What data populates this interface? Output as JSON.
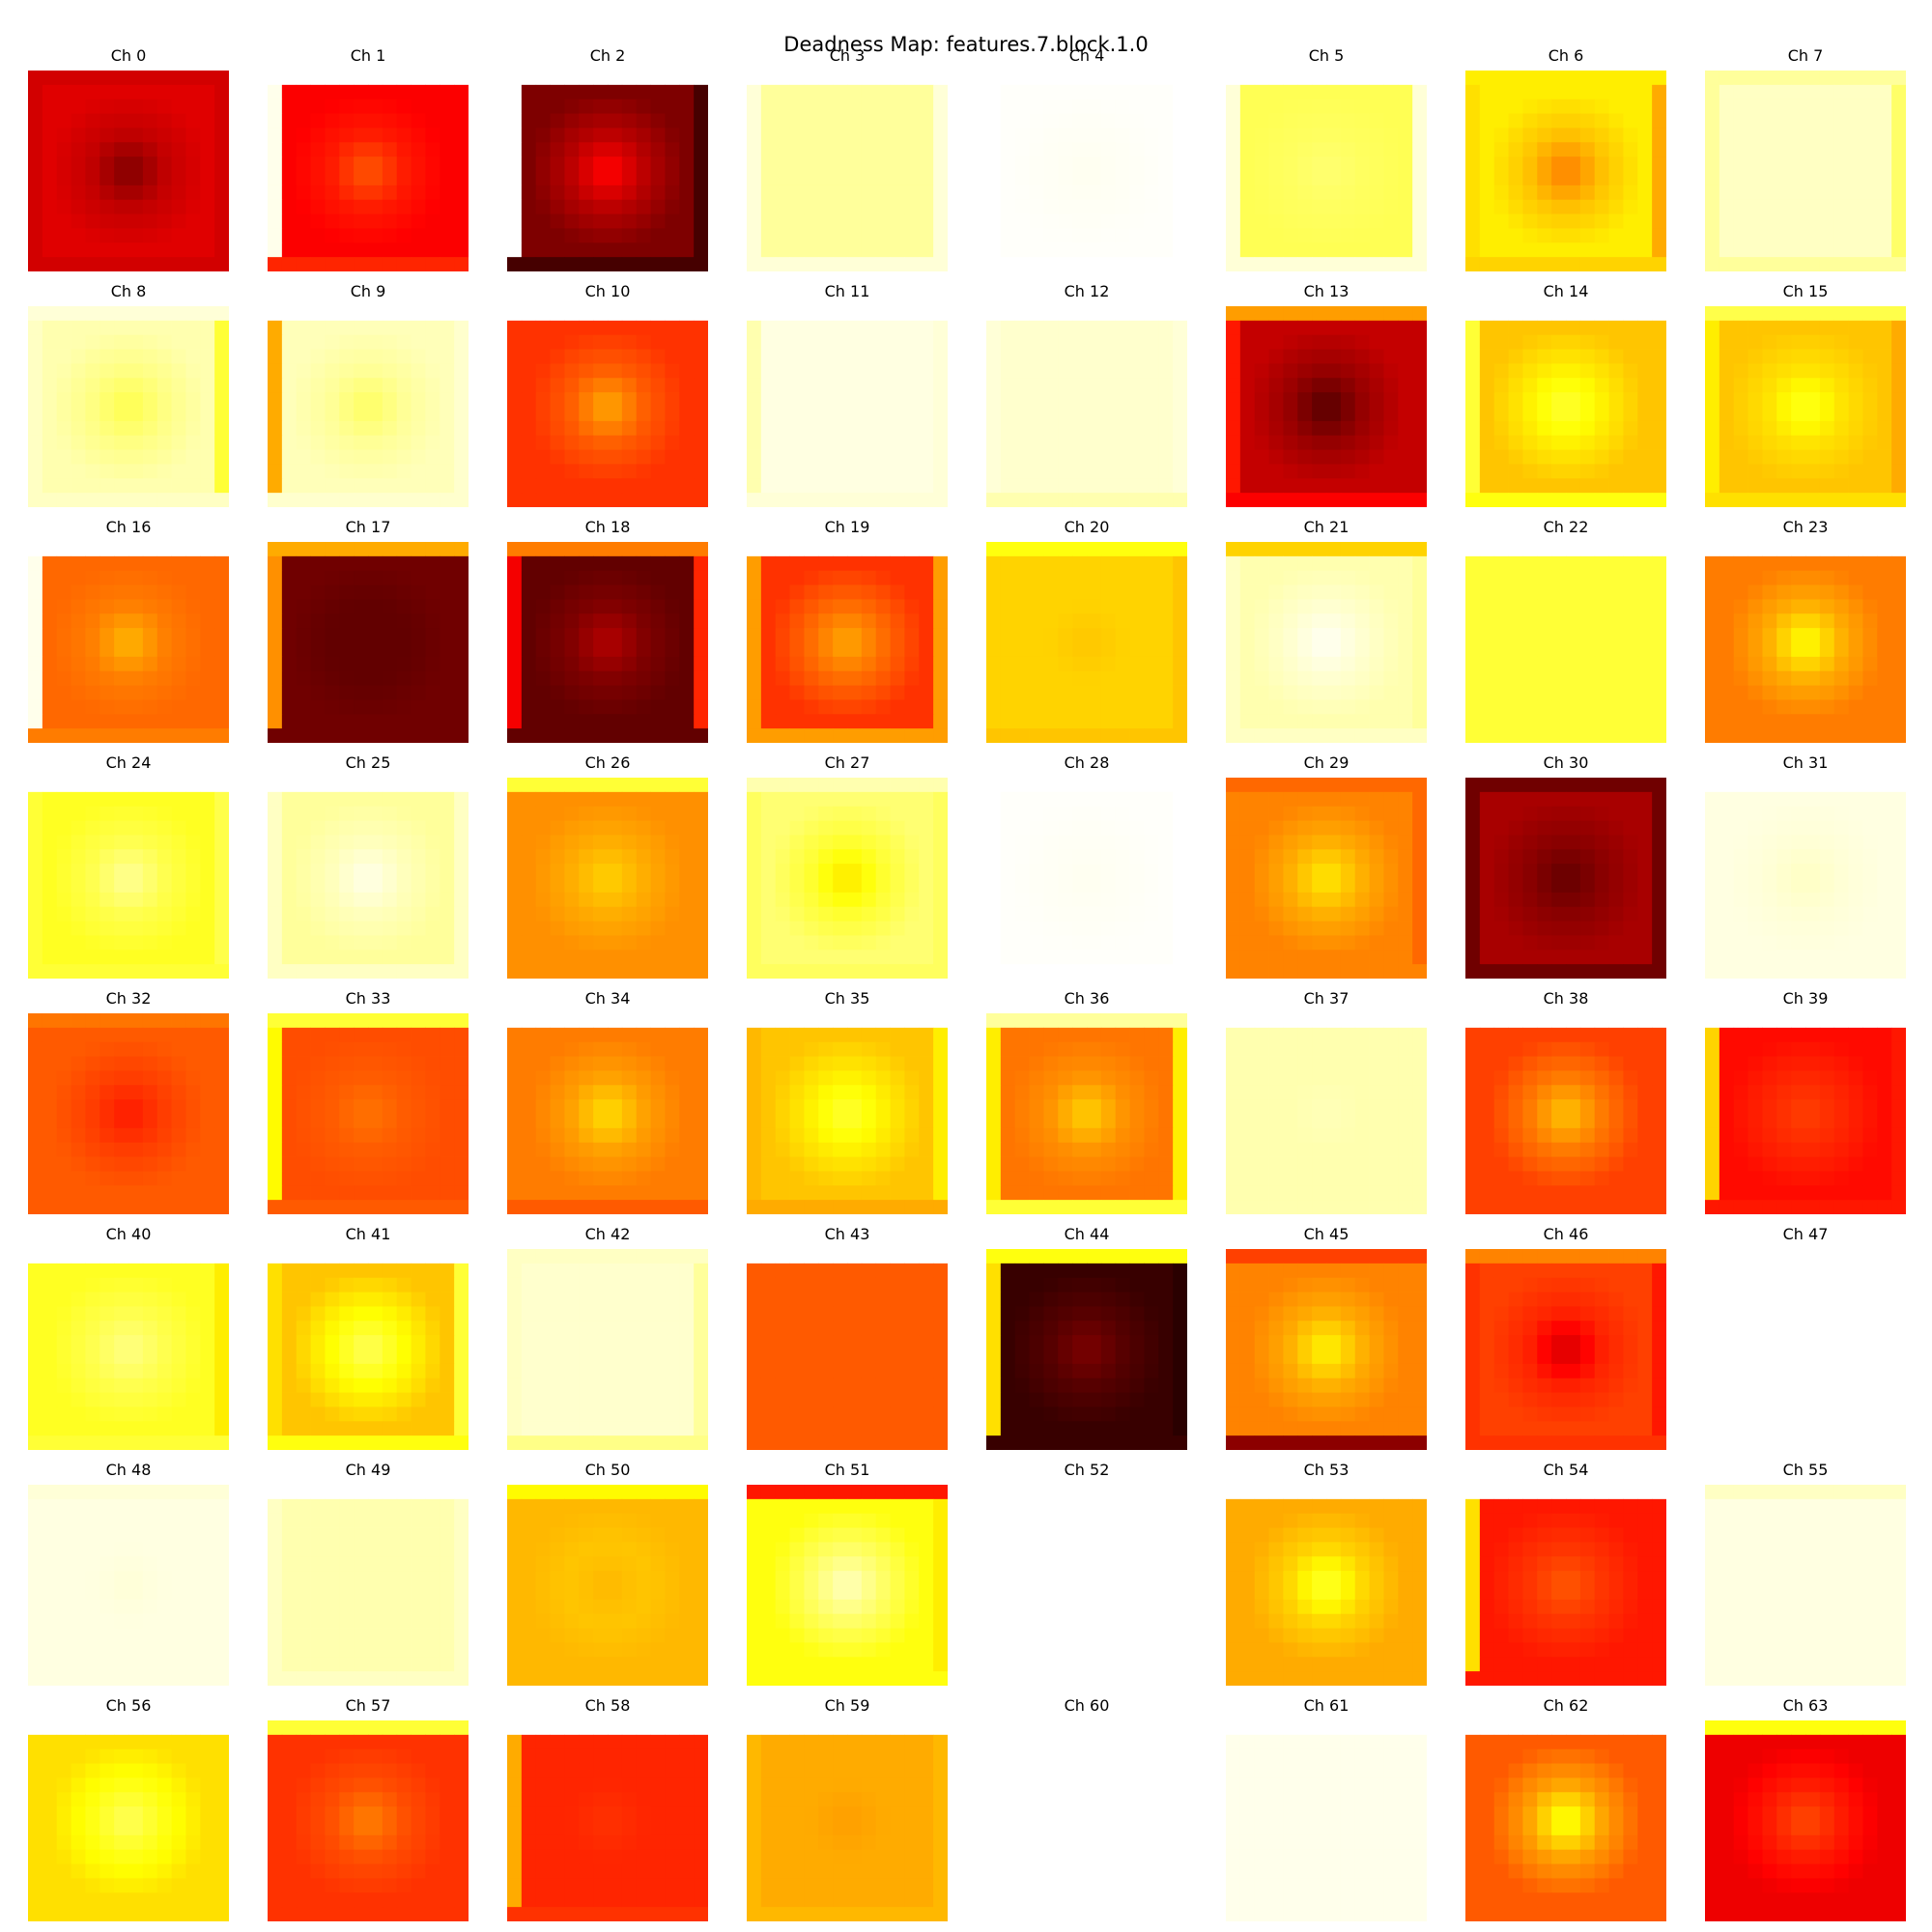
{
  "title": "Deadness Map: features.7.block.1.0",
  "colormap": "hot",
  "chart_data": {
    "type": "heatmap",
    "title": "Deadness Map: features.7.block.1.0",
    "grid": {
      "rows": 8,
      "cols": 8
    },
    "heatmap_grid_size": 14,
    "channels": [
      {
        "label": "Ch 0",
        "center": 0.18,
        "mid": 0.28,
        "edge": 0.32,
        "border": [
          0.3,
          0.3,
          0.3,
          0.3
        ],
        "blank": false
      },
      {
        "label": "Ch 1",
        "center": 0.5,
        "mid": 0.4,
        "edge": 0.36,
        "border": [
          1.0,
          0.42,
          0.36,
          0.98
        ],
        "blank": false
      },
      {
        "label": "Ch 2",
        "center": 0.38,
        "mid": 0.26,
        "edge": 0.18,
        "border": [
          1.0,
          0.1,
          0.1,
          1.0
        ],
        "blank": false
      },
      {
        "label": "Ch 3",
        "center": 0.9,
        "mid": 0.9,
        "edge": 0.9,
        "border": [
          1.0,
          0.96,
          0.96,
          0.96
        ],
        "blank": false
      },
      {
        "label": "Ch 4",
        "center": 0.985,
        "mid": 0.99,
        "edge": 0.995,
        "border": [
          1.0,
          1.0,
          1.0,
          1.0
        ],
        "blank": false
      },
      {
        "label": "Ch 5",
        "center": 0.86,
        "mid": 0.84,
        "edge": 0.83,
        "border": [
          1.0,
          0.96,
          0.96,
          0.96
        ],
        "blank": false
      },
      {
        "label": "Ch 6",
        "center": 0.55,
        "mid": 0.66,
        "edge": 0.72,
        "border": [
          0.72,
          0.68,
          0.62,
          0.7
        ],
        "blank": false
      },
      {
        "label": "Ch 7",
        "center": 0.94,
        "mid": 0.94,
        "edge": 0.94,
        "border": [
          0.9,
          0.9,
          0.85,
          0.9
        ],
        "blank": false
      },
      {
        "label": "Ch 8",
        "center": 0.82,
        "mid": 0.88,
        "edge": 0.92,
        "border": [
          0.96,
          0.94,
          0.8,
          0.94
        ],
        "blank": false
      },
      {
        "label": "Ch 9",
        "center": 0.84,
        "mid": 0.9,
        "edge": 0.93,
        "border": [
          1.0,
          0.95,
          0.95,
          0.62
        ],
        "blank": false
      },
      {
        "label": "Ch 10",
        "center": 0.62,
        "mid": 0.5,
        "edge": 0.44,
        "border": [
          1.0,
          0.44,
          0.44,
          0.44
        ],
        "blank": false
      },
      {
        "label": "Ch 11",
        "center": 0.97,
        "mid": 0.97,
        "edge": 0.97,
        "border": [
          1.0,
          0.96,
          0.96,
          0.92
        ],
        "blank": false
      },
      {
        "label": "Ch 12",
        "center": 0.95,
        "mid": 0.95,
        "edge": 0.95,
        "border": [
          1.0,
          0.92,
          0.96,
          0.96
        ],
        "blank": false
      },
      {
        "label": "Ch 13",
        "center": 0.12,
        "mid": 0.22,
        "edge": 0.28,
        "border": [
          0.6,
          0.36,
          0.28,
          0.4
        ],
        "blank": false
      },
      {
        "label": "Ch 14",
        "center": 0.8,
        "mid": 0.72,
        "edge": 0.66,
        "border": [
          1.0,
          0.76,
          0.66,
          0.8
        ],
        "blank": false
      },
      {
        "label": "Ch 15",
        "center": 0.78,
        "mid": 0.7,
        "edge": 0.66,
        "border": [
          0.82,
          0.7,
          0.62,
          0.72
        ],
        "blank": false
      },
      {
        "label": "Ch 16",
        "center": 0.64,
        "mid": 0.55,
        "edge": 0.52,
        "border": [
          1.0,
          0.55,
          0.52,
          0.98
        ],
        "blank": false
      },
      {
        "label": "Ch 17",
        "center": 0.14,
        "mid": 0.14,
        "edge": 0.16,
        "border": [
          0.62,
          0.16,
          0.16,
          0.58
        ],
        "blank": false
      },
      {
        "label": "Ch 18",
        "center": 0.26,
        "mid": 0.18,
        "edge": 0.14,
        "border": [
          0.55,
          0.14,
          0.42,
          0.35
        ],
        "blank": false
      },
      {
        "label": "Ch 19",
        "center": 0.62,
        "mid": 0.52,
        "edge": 0.44,
        "border": [
          1.0,
          0.6,
          0.6,
          0.6
        ],
        "blank": false
      },
      {
        "label": "Ch 20",
        "center": 0.66,
        "mid": 0.68,
        "edge": 0.68,
        "border": [
          0.76,
          0.66,
          0.66,
          0.68
        ],
        "blank": false
      },
      {
        "label": "Ch 21",
        "center": 0.99,
        "mid": 0.95,
        "edge": 0.92,
        "border": [
          0.68,
          0.94,
          0.9,
          0.94
        ],
        "blank": false
      },
      {
        "label": "Ch 22",
        "center": 0.8,
        "mid": 0.8,
        "edge": 0.8,
        "border": [
          1.0,
          0.8,
          0.8,
          0.8
        ],
        "blank": false
      },
      {
        "label": "Ch 23",
        "center": 0.76,
        "mid": 0.62,
        "edge": 0.55,
        "border": [
          1.0,
          0.55,
          0.55,
          0.55
        ],
        "blank": false
      },
      {
        "label": "Ch 24",
        "center": 0.9,
        "mid": 0.82,
        "edge": 0.78,
        "border": [
          1.0,
          0.8,
          0.82,
          0.8
        ],
        "blank": false
      },
      {
        "label": "Ch 25",
        "center": 0.98,
        "mid": 0.93,
        "edge": 0.9,
        "border": [
          1.0,
          0.94,
          0.94,
          0.94
        ],
        "blank": false
      },
      {
        "label": "Ch 26",
        "center": 0.68,
        "mid": 0.62,
        "edge": 0.58,
        "border": [
          0.8,
          0.58,
          0.58,
          0.58
        ],
        "blank": false
      },
      {
        "label": "Ch 27",
        "center": 0.7,
        "mid": 0.8,
        "edge": 0.86,
        "border": [
          0.92,
          0.84,
          0.84,
          0.84
        ],
        "blank": false
      },
      {
        "label": "Ch 28",
        "center": 0.985,
        "mid": 0.99,
        "edge": 0.995,
        "border": [
          1.0,
          1.0,
          1.0,
          1.0
        ],
        "blank": false
      },
      {
        "label": "Ch 29",
        "center": 0.72,
        "mid": 0.62,
        "edge": 0.56,
        "border": [
          0.52,
          0.56,
          0.52,
          0.56
        ],
        "blank": false
      },
      {
        "label": "Ch 30",
        "center": 0.14,
        "mid": 0.2,
        "edge": 0.24,
        "border": [
          0.16,
          0.16,
          0.16,
          0.16
        ],
        "blank": false
      },
      {
        "label": "Ch 31",
        "center": 0.94,
        "mid": 0.96,
        "edge": 0.97,
        "border": [
          1.0,
          0.97,
          0.97,
          0.97
        ],
        "blank": false
      },
      {
        "label": "Ch 32",
        "center": 0.4,
        "mid": 0.46,
        "edge": 0.5,
        "border": [
          0.54,
          0.5,
          0.5,
          0.5
        ],
        "blank": false
      },
      {
        "label": "Ch 33",
        "center": 0.54,
        "mid": 0.5,
        "edge": 0.48,
        "border": [
          0.8,
          0.5,
          0.48,
          0.74
        ],
        "blank": false
      },
      {
        "label": "Ch 34",
        "center": 0.7,
        "mid": 0.6,
        "edge": 0.55,
        "border": [
          1.0,
          0.5,
          0.55,
          0.55
        ],
        "blank": false
      },
      {
        "label": "Ch 35",
        "center": 0.8,
        "mid": 0.72,
        "edge": 0.66,
        "border": [
          1.0,
          0.62,
          0.72,
          0.64
        ],
        "blank": false
      },
      {
        "label": "Ch 36",
        "center": 0.68,
        "mid": 0.58,
        "edge": 0.54,
        "border": [
          0.9,
          0.8,
          0.72,
          0.72
        ],
        "blank": false
      },
      {
        "label": "Ch 37",
        "center": 0.93,
        "mid": 0.92,
        "edge": 0.92,
        "border": [
          1.0,
          0.92,
          0.92,
          0.92
        ],
        "blank": false
      },
      {
        "label": "Ch 38",
        "center": 0.66,
        "mid": 0.54,
        "edge": 0.46,
        "border": [
          1.0,
          0.46,
          0.46,
          0.46
        ],
        "blank": false
      },
      {
        "label": "Ch 39",
        "center": 0.46,
        "mid": 0.42,
        "edge": 0.38,
        "border": [
          1.0,
          0.4,
          0.4,
          0.68
        ],
        "blank": false
      },
      {
        "label": "Ch 40",
        "center": 0.88,
        "mid": 0.82,
        "edge": 0.78,
        "border": [
          1.0,
          0.8,
          0.72,
          0.78
        ],
        "blank": false
      },
      {
        "label": "Ch 41",
        "center": 0.84,
        "mid": 0.74,
        "edge": 0.66,
        "border": [
          1.0,
          0.76,
          0.8,
          0.7
        ],
        "blank": false
      },
      {
        "label": "Ch 42",
        "center": 0.95,
        "mid": 0.95,
        "edge": 0.95,
        "border": [
          0.94,
          0.88,
          0.9,
          0.94
        ],
        "blank": false
      },
      {
        "label": "Ch 43",
        "center": 0.5,
        "mid": 0.5,
        "edge": 0.5,
        "border": [
          1.0,
          0.5,
          0.5,
          0.5
        ],
        "blank": false
      },
      {
        "label": "Ch 44",
        "center": 0.18,
        "mid": 0.12,
        "edge": 0.08,
        "border": [
          0.76,
          0.08,
          0.06,
          0.7
        ],
        "blank": false
      },
      {
        "label": "Ch 45",
        "center": 0.74,
        "mid": 0.62,
        "edge": 0.56,
        "border": [
          0.46,
          0.2,
          0.56,
          0.56
        ],
        "blank": false
      },
      {
        "label": "Ch 46",
        "center": 0.3,
        "mid": 0.42,
        "edge": 0.46,
        "border": [
          0.56,
          0.44,
          0.4,
          0.44
        ],
        "blank": false
      },
      {
        "label": "Ch 47",
        "center": 1,
        "mid": 1,
        "edge": 1,
        "border": [
          1,
          1,
          1,
          1
        ],
        "blank": true
      },
      {
        "label": "Ch 48",
        "center": 0.96,
        "mid": 0.97,
        "edge": 0.97,
        "border": [
          0.96,
          0.97,
          0.97,
          0.97
        ],
        "blank": false
      },
      {
        "label": "Ch 49",
        "center": 0.92,
        "mid": 0.92,
        "edge": 0.92,
        "border": [
          1.0,
          0.94,
          0.94,
          0.94
        ],
        "blank": false
      },
      {
        "label": "Ch 50",
        "center": 0.64,
        "mid": 0.66,
        "edge": 0.64,
        "border": [
          0.74,
          0.64,
          0.64,
          0.64
        ],
        "blank": false
      },
      {
        "label": "Ch 51",
        "center": 0.94,
        "mid": 0.84,
        "edge": 0.76,
        "border": [
          0.4,
          0.76,
          0.72,
          0.76
        ],
        "blank": false
      },
      {
        "label": "Ch 52",
        "center": 1,
        "mid": 1,
        "edge": 1,
        "border": [
          1,
          1,
          1,
          1
        ],
        "blank": true
      },
      {
        "label": "Ch 53",
        "center": 0.8,
        "mid": 0.68,
        "edge": 0.62,
        "border": [
          1.0,
          0.62,
          0.62,
          0.62
        ],
        "blank": false
      },
      {
        "label": "Ch 54",
        "center": 0.5,
        "mid": 0.44,
        "edge": 0.4,
        "border": [
          1.0,
          0.4,
          0.4,
          0.7
        ],
        "blank": false
      },
      {
        "label": "Ch 55",
        "center": 0.97,
        "mid": 0.97,
        "edge": 0.97,
        "border": [
          0.94,
          0.97,
          0.97,
          0.97
        ],
        "blank": false
      },
      {
        "label": "Ch 56",
        "center": 0.84,
        "mid": 0.76,
        "edge": 0.7,
        "border": [
          1.0,
          0.7,
          0.7,
          0.7
        ],
        "blank": false
      },
      {
        "label": "Ch 57",
        "center": 0.56,
        "mid": 0.48,
        "edge": 0.44,
        "border": [
          0.8,
          0.44,
          0.44,
          0.44
        ],
        "blank": false
      },
      {
        "label": "Ch 58",
        "center": 0.44,
        "mid": 0.42,
        "edge": 0.42,
        "border": [
          1.0,
          0.44,
          0.42,
          0.62
        ],
        "blank": false
      },
      {
        "label": "Ch 59",
        "center": 0.6,
        "mid": 0.62,
        "edge": 0.62,
        "border": [
          1.0,
          0.64,
          0.64,
          0.64
        ],
        "blank": false
      },
      {
        "label": "Ch 60",
        "center": 1,
        "mid": 1,
        "edge": 1,
        "border": [
          1,
          1,
          1,
          1
        ],
        "blank": true
      },
      {
        "label": "Ch 61",
        "center": 0.98,
        "mid": 0.98,
        "edge": 0.98,
        "border": [
          1.0,
          0.98,
          0.98,
          0.98
        ],
        "blank": false
      },
      {
        "label": "Ch 62",
        "center": 0.78,
        "mid": 0.6,
        "edge": 0.5,
        "border": [
          1.0,
          0.5,
          0.5,
          0.5
        ],
        "blank": false
      },
      {
        "label": "Ch 63",
        "center": 0.48,
        "mid": 0.4,
        "edge": 0.34,
        "border": [
          0.76,
          0.34,
          0.34,
          0.34
        ],
        "blank": false
      }
    ]
  }
}
